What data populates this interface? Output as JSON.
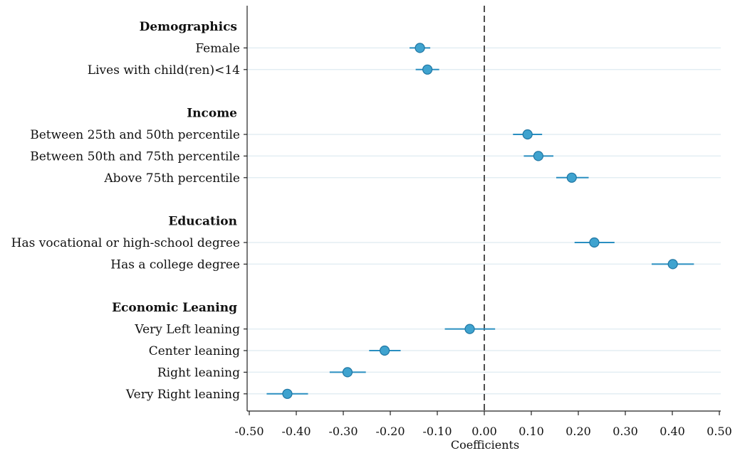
{
  "chart_data": {
    "type": "scatter",
    "xlabel": "Coefficients",
    "xlim": [
      -0.5,
      0.5
    ],
    "xticks": [
      -0.5,
      -0.4,
      -0.3,
      -0.2,
      -0.1,
      0.0,
      0.1,
      0.2,
      0.3,
      0.4,
      0.5
    ],
    "xtick_labels": [
      "-0.50",
      "-0.40",
      "-0.30",
      "-0.20",
      "-0.10",
      "0.00",
      "0.10",
      "0.20",
      "0.30",
      "0.40",
      "0.50"
    ],
    "reference_line": 0.0,
    "colors": {
      "point": "#3fa3cf",
      "ci": "#2a8fc1",
      "grid": "#e3eef3"
    },
    "groups": [
      {
        "label": "Demographics",
        "rows": [
          {
            "label": "Female",
            "coef": -0.137,
            "lo": -0.159,
            "hi": -0.115
          },
          {
            "label": "Lives with child(ren)<14",
            "coef": -0.121,
            "lo": -0.146,
            "hi": -0.096
          }
        ]
      },
      {
        "label": "Income",
        "rows": [
          {
            "label": "Between 25th and 50th percentile",
            "coef": 0.092,
            "lo": 0.061,
            "hi": 0.123
          },
          {
            "label": "Between 50th and 75th percentile",
            "coef": 0.115,
            "lo": 0.084,
            "hi": 0.147
          },
          {
            "label": "Above 75th percentile",
            "coef": 0.186,
            "lo": 0.153,
            "hi": 0.222
          }
        ]
      },
      {
        "label": "Education",
        "rows": [
          {
            "label": "Has vocational or high-school degree",
            "coef": 0.234,
            "lo": 0.192,
            "hi": 0.277
          },
          {
            "label": "Has a college degree",
            "coef": 0.401,
            "lo": 0.356,
            "hi": 0.446
          }
        ]
      },
      {
        "label": "Economic Leaning",
        "rows": [
          {
            "label": "Very Left leaning",
            "coef": -0.031,
            "lo": -0.084,
            "hi": 0.023
          },
          {
            "label": "Center leaning",
            "coef": -0.212,
            "lo": -0.245,
            "hi": -0.178
          },
          {
            "label": "Right leaning",
            "coef": -0.291,
            "lo": -0.329,
            "hi": -0.252
          },
          {
            "label": "Very Right leaning",
            "coef": -0.419,
            "lo": -0.463,
            "hi": -0.375
          }
        ]
      }
    ]
  }
}
